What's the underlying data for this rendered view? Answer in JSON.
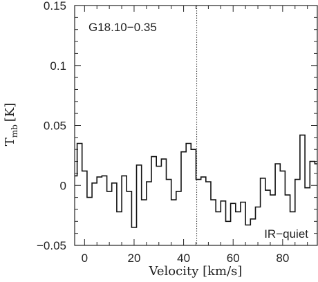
{
  "chart_data": {
    "type": "line",
    "step": true,
    "xlabel": "Velocity [km/s]",
    "ylabel": "T_mb [K]",
    "ylabel_main": "T",
    "ylabel_sub": "mb",
    "ylabel_unit": "[K]",
    "xlim": [
      -4,
      94
    ],
    "ylim": [
      -0.05,
      0.15
    ],
    "x_ticks": [
      0,
      20,
      40,
      60,
      80
    ],
    "y_ticks": [
      -0.05,
      0,
      0.05,
      0.1,
      0.15
    ],
    "y_tick_labels": [
      "−0.05",
      "0",
      "0.05",
      "0.1",
      "0.15"
    ],
    "grid": false,
    "vline_x": 45.3,
    "annotation_source": "G18.10−0.35",
    "annotation_class": "IR−quiet",
    "series": [
      {
        "x": [
          -4,
          -2,
          0,
          2,
          4,
          6,
          8,
          10,
          12,
          14,
          16,
          18,
          20,
          22,
          24,
          26,
          28,
          30,
          32,
          34,
          36,
          38,
          40,
          42,
          44,
          46,
          48,
          50,
          52,
          54,
          56,
          58,
          60,
          62,
          64,
          66,
          68,
          70,
          72,
          74,
          76,
          78,
          80,
          82,
          84,
          86,
          88,
          90,
          92,
          94
        ],
        "y": [
          0.008,
          0.035,
          0.012,
          -0.01,
          0.002,
          0.007,
          0.008,
          -0.005,
          0.002,
          -0.022,
          0.008,
          -0.005,
          -0.035,
          0.017,
          -0.012,
          0.003,
          0.024,
          0.016,
          0.022,
          0.005,
          -0.012,
          -0.005,
          0.028,
          0.035,
          0.03,
          0.005,
          0.007,
          0.003,
          -0.012,
          -0.022,
          -0.013,
          -0.03,
          -0.015,
          -0.022,
          -0.014,
          -0.033,
          -0.028,
          -0.018,
          0.006,
          -0.004,
          -0.008,
          0.018,
          0.012,
          -0.008,
          -0.022,
          0.005,
          0.042,
          -0.002,
          0.02,
          0.018
        ]
      }
    ]
  }
}
